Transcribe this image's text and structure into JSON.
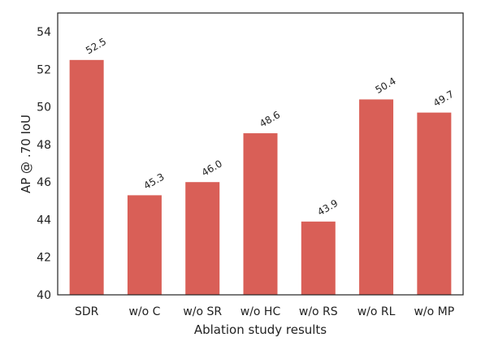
{
  "chart_data": {
    "type": "bar",
    "title": "",
    "xlabel": "Ablation study results",
    "ylabel": "AP @ .70 IoU",
    "categories": [
      "SDR",
      "w/o C",
      "w/o SR",
      "w/o HC",
      "w/o RS",
      "w/o RL",
      "w/o MP"
    ],
    "values": [
      52.5,
      45.3,
      46.0,
      48.6,
      43.9,
      50.4,
      49.7
    ],
    "value_labels": [
      "52.5",
      "45.3",
      "46.0",
      "48.6",
      "43.9",
      "50.4",
      "49.7"
    ],
    "ylim": [
      40,
      55
    ],
    "yticks": [
      40,
      42,
      44,
      46,
      48,
      50,
      52,
      54
    ],
    "grid": false,
    "legend": "none",
    "bar_color": "#d95f57"
  }
}
